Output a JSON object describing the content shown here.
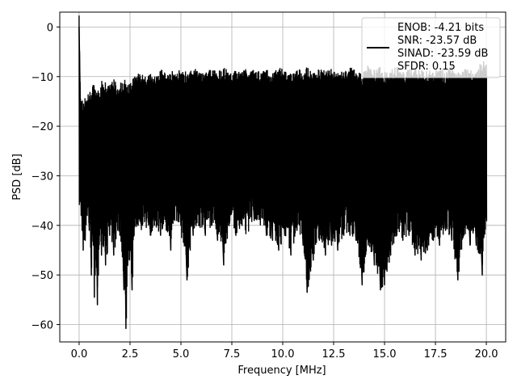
{
  "chart_data": {
    "type": "line",
    "title": "",
    "xlabel": "Frequency [MHz]",
    "ylabel": "PSD [dB]",
    "xlim": [
      -0.95,
      20.95
    ],
    "ylim": [
      -63.5,
      3.0
    ],
    "xticks": [
      0.0,
      2.5,
      5.0,
      7.5,
      10.0,
      12.5,
      15.0,
      17.5,
      20.0
    ],
    "xtick_labels": [
      "0.0",
      "2.5",
      "5.0",
      "7.5",
      "10.0",
      "12.5",
      "15.0",
      "17.5",
      "20.0"
    ],
    "yticks": [
      0,
      -10,
      -20,
      -30,
      -40,
      -50,
      -60
    ],
    "ytick_labels": [
      "0",
      "−10",
      "−20",
      "−30",
      "−40",
      "−50",
      "−60"
    ],
    "grid": true,
    "legend_position": "top-right",
    "line_color": "#000000",
    "series": [
      {
        "name": "ENOB: -4.21 bits\nSNR: -23.57 dB\nSINAD: -23.59 dB\nSFDR: 0.15",
        "legend_lines": [
          "ENOB: -4.21 bits",
          "SNR: -23.57 dB",
          "SINAD: -23.59 dB",
          "SFDR: 0.15"
        ],
        "x": [
          0.0,
          0.05,
          0.1,
          0.15,
          0.2,
          0.3,
          0.4,
          0.5,
          0.6,
          0.7,
          0.75,
          0.8,
          0.9,
          1.0,
          1.1,
          1.2,
          1.3,
          1.5,
          1.7,
          1.9,
          2.0,
          2.2,
          2.3,
          2.4,
          2.6,
          2.7,
          2.9,
          3.1,
          3.3,
          3.5,
          3.7,
          4.0,
          4.3,
          4.5,
          4.7,
          5.0,
          5.3,
          5.6,
          5.9,
          6.2,
          6.5,
          6.8,
          7.1,
          7.4,
          7.7,
          8.0,
          8.3,
          8.6,
          8.9,
          9.2,
          9.5,
          9.8,
          10.1,
          10.4,
          10.7,
          11.0,
          11.2,
          11.5,
          11.8,
          12.1,
          12.4,
          12.7,
          13.0,
          13.3,
          13.6,
          13.9,
          14.2,
          14.5,
          14.8,
          15.0,
          15.3,
          15.6,
          15.9,
          16.2,
          16.5,
          16.8,
          17.1,
          17.4,
          17.7,
          18.0,
          18.3,
          18.6,
          18.9,
          19.2,
          19.5,
          19.8,
          20.0
        ],
        "y": [
          0.0,
          -13.5,
          -38.0,
          -41.0,
          -45.0,
          -43.0,
          -38.0,
          -41.0,
          -50.0,
          -44.0,
          -54.5,
          -47.0,
          -56.0,
          -42.0,
          -46.0,
          -44.0,
          -48.0,
          -42.0,
          -46.0,
          -41.0,
          -42.0,
          -53.0,
          -60.8,
          -47.0,
          -53.0,
          -42.0,
          -40.0,
          -40.0,
          -39.0,
          -42.0,
          -40.0,
          -42.0,
          -41.0,
          -45.0,
          -39.0,
          -40.0,
          -51.0,
          -42.0,
          -40.0,
          -42.0,
          -40.0,
          -43.0,
          -48.0,
          -39.0,
          -42.0,
          -40.0,
          -38.0,
          -39.0,
          -39.0,
          -42.0,
          -43.0,
          -45.0,
          -42.0,
          -46.0,
          -41.0,
          -44.0,
          -53.5,
          -47.0,
          -43.0,
          -46.0,
          -44.0,
          -45.0,
          -42.0,
          -42.0,
          -43.0,
          -52.0,
          -44.0,
          -48.0,
          -53.0,
          -52.0,
          -46.0,
          -42.0,
          -43.0,
          -42.0,
          -46.0,
          -47.0,
          -45.0,
          -43.0,
          -44.0,
          -41.0,
          -43.0,
          -51.0,
          -42.0,
          -44.0,
          -44.0,
          -50.0,
          -38.0
        ],
        "upper": [
          0.0,
          -14.0,
          -17.0,
          -17.0,
          -18.0,
          -16.5,
          -16.0,
          -15.5,
          -15.0,
          -14.0,
          -13.5,
          -15.0,
          -14.5,
          -16.0,
          -13.0,
          -14.5,
          -13.5,
          -14.0,
          -12.5,
          -14.5,
          -13.5,
          -13.5,
          -12.5,
          -14.0,
          -13.0,
          -12.0,
          -11.5,
          -12.0,
          -12.5,
          -11.5,
          -12.5,
          -11.0,
          -11.5,
          -11.0,
          -11.5,
          -11.0,
          -11.5,
          -10.5,
          -11.5,
          -10.8,
          -11.0,
          -11.5,
          -10.5,
          -11.5,
          -11.0,
          -11.0,
          -10.5,
          -11.0,
          -11.5,
          -11.0,
          -11.5,
          -10.5,
          -11.0,
          -11.5,
          -11.0,
          -11.0,
          -10.5,
          -11.5,
          -11.0,
          -10.5,
          -11.0,
          -11.5,
          -11.5,
          -10.5,
          -11.0,
          -12.0,
          -10.0,
          -11.0,
          -10.5,
          -11.5,
          -11.0,
          -10.5,
          -11.5,
          -11.0,
          -10.5,
          -11.0,
          -11.0,
          -11.5,
          -10.5,
          -11.5,
          -10.0,
          -11.5,
          -11.0,
          -11.0,
          -11.5,
          -9.0,
          -10.0
        ]
      }
    ]
  }
}
